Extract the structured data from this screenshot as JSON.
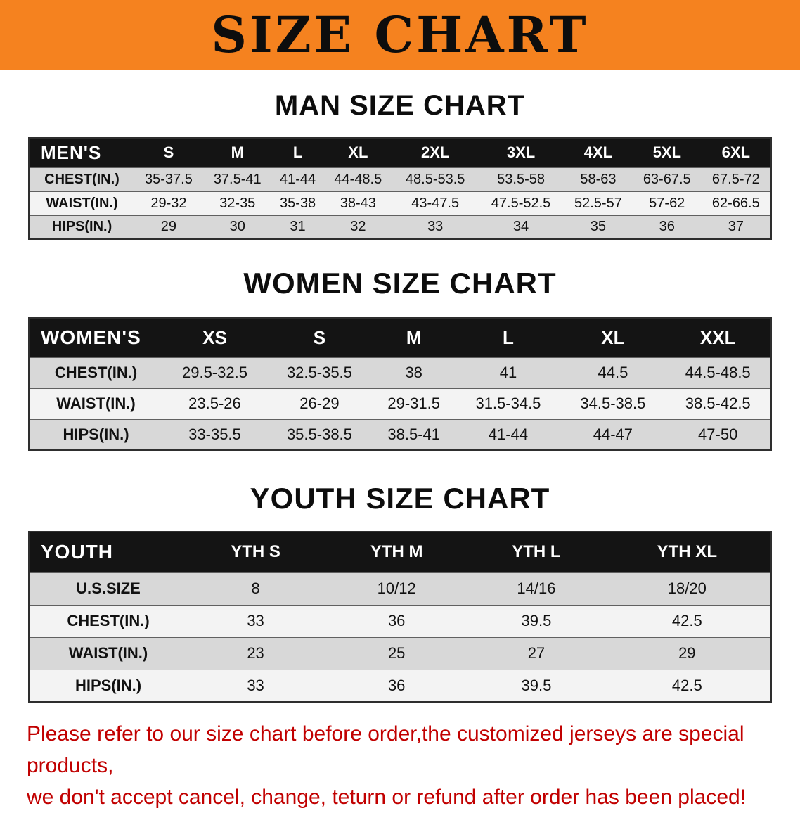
{
  "banner": {
    "title": "SIZE CHART",
    "bg_color": "#F5821F"
  },
  "sections": {
    "men": {
      "heading": "MAN SIZE CHART",
      "table": {
        "header": [
          "MEN'S",
          "S",
          "M",
          "L",
          "XL",
          "2XL",
          "3XL",
          "4XL",
          "5XL",
          "6XL"
        ],
        "rows": [
          {
            "label": "CHEST(IN.)",
            "values": [
              "35-37.5",
              "37.5-41",
              "41-44",
              "44-48.5",
              "48.5-53.5",
              "53.5-58",
              "58-63",
              "63-67.5",
              "67.5-72"
            ]
          },
          {
            "label": "WAIST(IN.)",
            "values": [
              "29-32",
              "32-35",
              "35-38",
              "38-43",
              "43-47.5",
              "47.5-52.5",
              "52.5-57",
              "57-62",
              "62-66.5"
            ]
          },
          {
            "label": "HIPS(IN.)",
            "values": [
              "29",
              "30",
              "31",
              "32",
              "33",
              "34",
              "35",
              "36",
              "37"
            ]
          }
        ]
      }
    },
    "women": {
      "heading": "WOMEN SIZE CHART",
      "table": {
        "header": [
          "WOMEN'S",
          "XS",
          "S",
          "M",
          "L",
          "XL",
          "XXL"
        ],
        "rows": [
          {
            "label": "CHEST(IN.)",
            "values": [
              "29.5-32.5",
              "32.5-35.5",
              "38",
              "41",
              "44.5",
              "44.5-48.5"
            ]
          },
          {
            "label": "WAIST(IN.)",
            "values": [
              "23.5-26",
              "26-29",
              "29-31.5",
              "31.5-34.5",
              "34.5-38.5",
              "38.5-42.5"
            ]
          },
          {
            "label": "HIPS(IN.)",
            "values": [
              "33-35.5",
              "35.5-38.5",
              "38.5-41",
              "41-44",
              "44-47",
              "47-50"
            ]
          }
        ]
      }
    },
    "youth": {
      "heading": "YOUTH SIZE CHART",
      "table": {
        "header": [
          "YOUTH",
          "YTH S",
          "YTH M",
          "YTH L",
          "YTH XL"
        ],
        "rows": [
          {
            "label": "U.S.SIZE",
            "values": [
              "8",
              "10/12",
              "14/16",
              "18/20"
            ]
          },
          {
            "label": "CHEST(IN.)",
            "values": [
              "33",
              "36",
              "39.5",
              "42.5"
            ]
          },
          {
            "label": "WAIST(IN.)",
            "values": [
              "23",
              "25",
              "27",
              "29"
            ]
          },
          {
            "label": "HIPS(IN.)",
            "values": [
              "33",
              "36",
              "39.5",
              "42.5"
            ]
          }
        ]
      }
    }
  },
  "disclaimer": {
    "text_color": "#C10000",
    "line1": "Please refer to our size chart before order,the customized jerseys are special products,",
    "line2": "we don't accept cancel, change, teturn or refund after order has been placed!"
  }
}
